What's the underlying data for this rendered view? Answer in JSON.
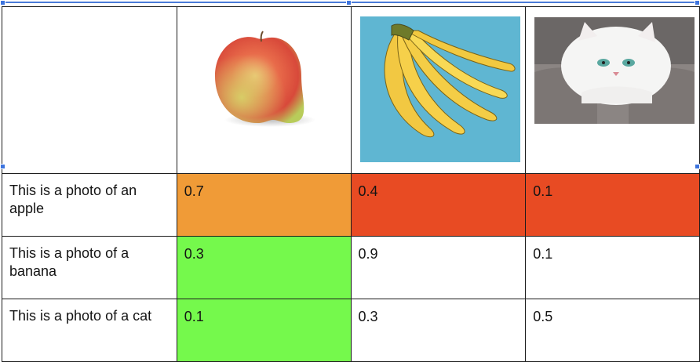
{
  "table": {
    "images": [
      {
        "name": "apple-image",
        "description": "apple"
      },
      {
        "name": "banana-image",
        "description": "banana"
      },
      {
        "name": "cat-image",
        "description": "cat"
      }
    ],
    "rows": [
      {
        "label": "This is a photo of an apple",
        "values": [
          "0.7",
          "0.4",
          "0.1"
        ],
        "colors": [
          "#f09b37",
          "#e84b23",
          "#e84b23"
        ]
      },
      {
        "label": "This is a photo of a banana",
        "values": [
          "0.3",
          "0.9",
          "0.1"
        ],
        "colors": [
          "#75f94c",
          "#ffffff",
          "#ffffff"
        ]
      },
      {
        "label": "This is a photo of a cat",
        "values": [
          "0.1",
          "0.3",
          "0.5"
        ],
        "colors": [
          "#75f94c",
          "#ffffff",
          "#ffffff"
        ]
      }
    ]
  },
  "colors": {
    "selection": "#3d74de",
    "orange": "#f09b37",
    "red": "#e84b23",
    "green": "#75f94c"
  }
}
